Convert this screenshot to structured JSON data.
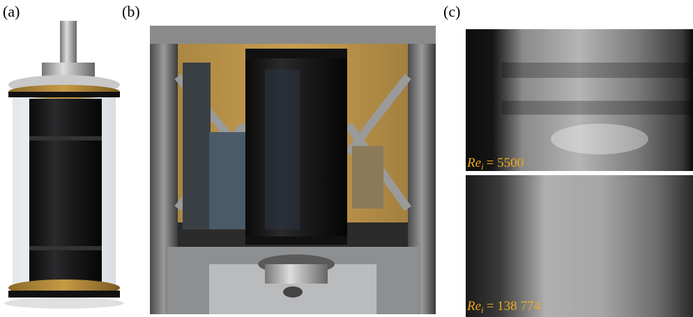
{
  "panels": [
    {
      "label": "(a)"
    },
    {
      "label": "(b)"
    },
    {
      "label": "(c)",
      "images": [
        {
          "annotation": {
            "symbol": "Re",
            "subscript": "i",
            "value": "= 5500"
          }
        },
        {
          "annotation": {
            "symbol": "Re",
            "subscript": "i",
            "value": "= 138 774"
          }
        }
      ]
    }
  ]
}
